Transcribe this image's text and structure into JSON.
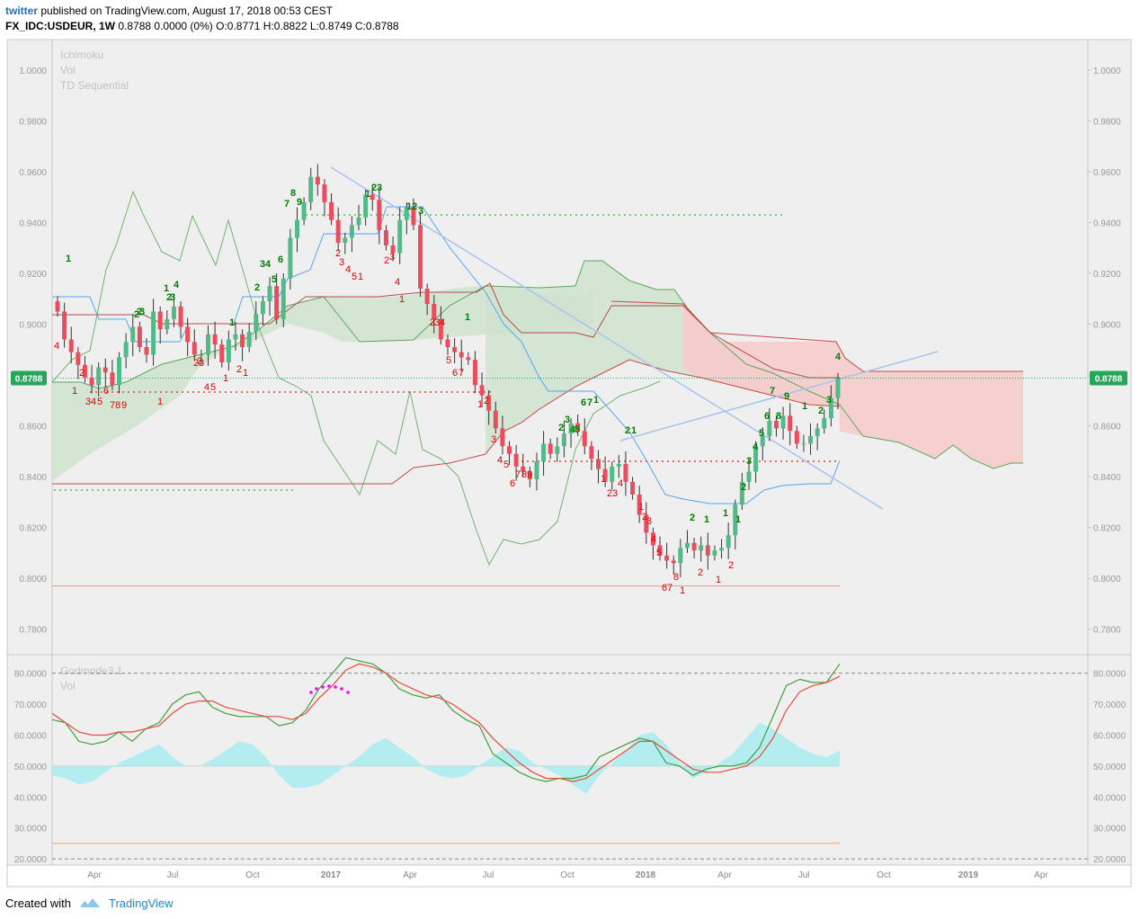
{
  "header": {
    "user": "twitter",
    "published": "published on TradingView.com, August 17, 2018 00:53 CEST",
    "symbol": "FX_IDC:USDEUR, 1W",
    "ohlc": "0.8788 0.0000 (0%) O:0.8771 H:0.8822 L:0.8749 C:0.8788"
  },
  "footer": {
    "created_with": "Created with",
    "brand": "TradingView"
  },
  "colors": {
    "bull": "#53b987",
    "bear": "#eb4d5c",
    "tenkan": "#55a3f6",
    "kijun": "#b44b4b",
    "spanA": "#5aa85a",
    "spanB": "#c94848",
    "cloud_bull": "#cde2cd",
    "cloud_bear": "#f6cbcb",
    "td_up": "#008000",
    "td_down": "#e00000",
    "osc_fast": "#3f9f3f",
    "osc_slow": "#e74c3c",
    "osc_area": "#a8ecf0",
    "magenta": "#ff00ff",
    "price_tag": "#26a65b"
  },
  "chart_data": [
    {
      "type": "candlestick",
      "title": "",
      "indicators": [
        "Ichimoku",
        "Vol",
        "TD Sequential"
      ],
      "y_ticks": [
        "1.0000",
        "0.9800",
        "0.9600",
        "0.9400",
        "0.9200",
        "0.9000",
        "0.8800",
        "0.8600",
        "0.8400",
        "0.8200",
        "0.8000",
        "0.7800"
      ],
      "ylim": [
        0.77,
        1.012
      ],
      "x_ticks": [
        "Apr",
        "Jul",
        "Oct",
        "2017",
        "Apr",
        "Jul",
        "Oct",
        "2018",
        "Apr",
        "Jul",
        "Oct",
        "2019",
        "Apr"
      ],
      "last_price": "0.8788",
      "closes": [
        0.905,
        0.894,
        0.889,
        0.884,
        0.879,
        0.876,
        0.883,
        0.881,
        0.876,
        0.887,
        0.893,
        0.899,
        0.891,
        0.888,
        0.905,
        0.898,
        0.902,
        0.907,
        0.899,
        0.893,
        0.888,
        0.888,
        0.896,
        0.892,
        0.885,
        0.894,
        0.896,
        0.891,
        0.897,
        0.904,
        0.909,
        0.915,
        0.902,
        0.918,
        0.934,
        0.941,
        0.948,
        0.958,
        0.955,
        0.948,
        0.941,
        0.932,
        0.934,
        0.939,
        0.942,
        0.951,
        0.949,
        0.937,
        0.931,
        0.928,
        0.941,
        0.946,
        0.939,
        0.914,
        0.908,
        0.902,
        0.894,
        0.891,
        0.889,
        0.887,
        0.886,
        0.876,
        0.872,
        0.866,
        0.859,
        0.852,
        0.849,
        0.844,
        0.842,
        0.839,
        0.846,
        0.853,
        0.849,
        0.852,
        0.857,
        0.861,
        0.858,
        0.852,
        0.847,
        0.843,
        0.838,
        0.844,
        0.845,
        0.838,
        0.833,
        0.825,
        0.818,
        0.813,
        0.809,
        0.807,
        0.806,
        0.812,
        0.814,
        0.811,
        0.813,
        0.809,
        0.811,
        0.812,
        0.817,
        0.829,
        0.838,
        0.842,
        0.852,
        0.856,
        0.862,
        0.859,
        0.864,
        0.858,
        0.853,
        0.853,
        0.856,
        0.859,
        0.863,
        0.871,
        0.8788
      ],
      "ichimoku_levels": {
        "tenkan_last": 0.845,
        "kijun_last": 0.864,
        "low_support": 0.797
      },
      "td_labels_up": [
        "1",
        "2",
        "2",
        "3",
        "1",
        "2",
        "3",
        "4",
        "1",
        "2",
        "3",
        "4",
        "5",
        "6",
        "7",
        "8",
        "9",
        "1",
        "2",
        "3",
        "1",
        "2",
        "3",
        "1",
        "2",
        "3",
        "4",
        "5",
        "6",
        "7",
        "1",
        "2",
        "1",
        "2",
        "1",
        "1",
        "1",
        "2",
        "3",
        "4",
        "5",
        "6",
        "7",
        "8",
        "9",
        "1",
        "2",
        "3",
        "4"
      ],
      "td_labels_down": [
        "4",
        "1",
        "2",
        "3",
        "4",
        "5",
        "6",
        "7",
        "8",
        "9",
        "1",
        "2",
        "2",
        "3",
        "4",
        "5",
        "1",
        "2",
        "1",
        "2",
        "3",
        "4",
        "5",
        "1",
        "2",
        "3",
        "4",
        "1",
        "2",
        "3",
        "4",
        "5",
        "6",
        "7",
        "1",
        "2",
        "3",
        "4",
        "5",
        "6",
        "7",
        "8",
        "9",
        "1",
        "2",
        "3",
        "4",
        "1",
        "2",
        "3",
        "4",
        "5",
        "6",
        "7",
        "8",
        "1",
        "2",
        "1",
        "2"
      ]
    },
    {
      "type": "line",
      "title": "",
      "indicators": [
        "Godmode3.1",
        "Vol"
      ],
      "y_ticks": [
        "80.0000",
        "70.0000",
        "60.0000",
        "50.0000",
        "40.0000",
        "30.0000",
        "20.0000"
      ],
      "ylim": [
        18,
        86
      ],
      "series": [
        {
          "values": [
            65,
            64,
            58,
            57,
            58,
            61,
            58,
            62,
            64,
            70,
            73,
            74,
            69,
            67,
            66,
            66,
            66,
            63,
            64,
            68,
            75,
            80,
            85,
            84,
            83,
            80,
            75,
            73,
            72,
            73,
            68,
            65,
            63,
            54,
            51,
            48,
            46,
            45,
            46,
            46,
            47,
            53,
            55,
            57,
            59,
            58,
            51,
            50,
            47,
            49,
            50,
            50,
            51,
            56,
            66,
            76,
            78,
            77,
            77,
            83
          ]
        },
        {
          "values": [
            67,
            64,
            61,
            60,
            60,
            61,
            61,
            62,
            63,
            67,
            70,
            71,
            71,
            69,
            68,
            67,
            66,
            66,
            65,
            67,
            72,
            76,
            81,
            83,
            82,
            80,
            77,
            75,
            73,
            72,
            70,
            67,
            64,
            59,
            55,
            51,
            48,
            46,
            46,
            45,
            46,
            49,
            52,
            55,
            58,
            58,
            55,
            52,
            49,
            48,
            48,
            49,
            50,
            53,
            59,
            68,
            74,
            76,
            77,
            79
          ]
        }
      ],
      "dashed_levels": [
        80,
        20
      ],
      "orange_level": 25,
      "midline": 50,
      "area_values": [
        47,
        46,
        44,
        45,
        48,
        51,
        53,
        55,
        57,
        53,
        50,
        50,
        52,
        55,
        58,
        57,
        53,
        47,
        43,
        43,
        44,
        47,
        50,
        53,
        57,
        59,
        56,
        53,
        49,
        47,
        46,
        47,
        50,
        53,
        56,
        55,
        51,
        49,
        47,
        44,
        41,
        47,
        51,
        55,
        60,
        61,
        57,
        51,
        46,
        48,
        51,
        54,
        59,
        64,
        62,
        59,
        56,
        54,
        53,
        55
      ]
    }
  ]
}
